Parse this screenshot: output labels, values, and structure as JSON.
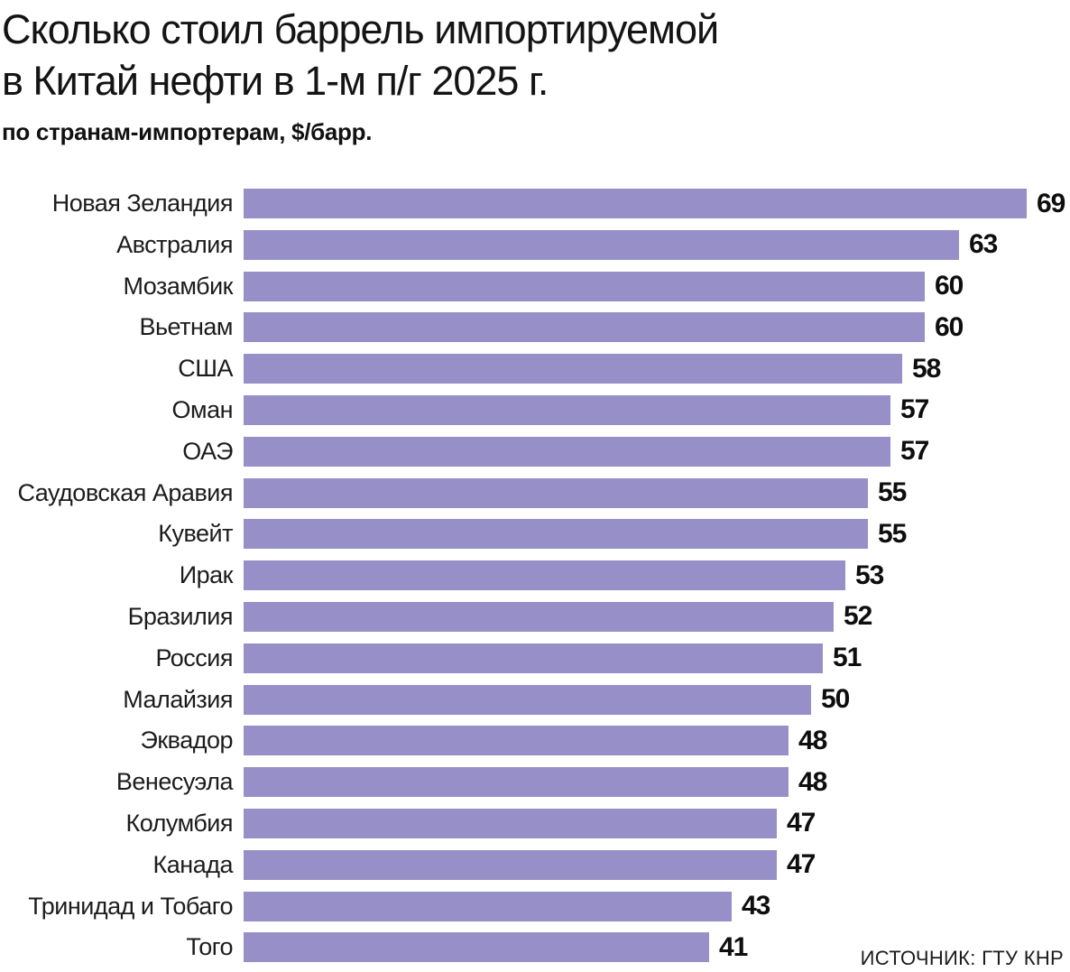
{
  "header": {
    "title_lines": [
      "Сколько стоил баррель импортируемой",
      "в Китай нефти в 1-м п/г 2025 г."
    ],
    "subtitle": "по странам-импортерам, $/барр."
  },
  "source": "ИСТОЧНИК: ГТУ КНР",
  "colors": {
    "bar": "#978FC7",
    "text": "#161616"
  },
  "chart_data": {
    "type": "bar",
    "orientation": "horizontal",
    "title": "Сколько стоил баррель импортируемой в Китай нефти в 1-м п/г 2025 г.",
    "subtitle": "по странам-импортерам, $/барр.",
    "unit": "$/барр.",
    "categories": [
      "Новая Зеландия",
      "Австралия",
      "Мозамбик",
      "Вьетнам",
      "США",
      "Оман",
      "ОАЭ",
      "Саудовская Аравия",
      "Кувейт",
      "Ирак",
      "Бразилия",
      "Россия",
      "Малайзия",
      "Эквадор",
      "Венесуэла",
      "Колумбия",
      "Канада",
      "Тринидад и Тобаго",
      "Того"
    ],
    "values": [
      69,
      63,
      60,
      60,
      58,
      57,
      57,
      55,
      55,
      53,
      52,
      51,
      50,
      48,
      48,
      47,
      47,
      43,
      41
    ],
    "xlim": [
      0,
      69
    ],
    "value_labels": true,
    "grid": false,
    "legend": false,
    "source": "ИСТОЧНИК: ГТУ КНР"
  }
}
